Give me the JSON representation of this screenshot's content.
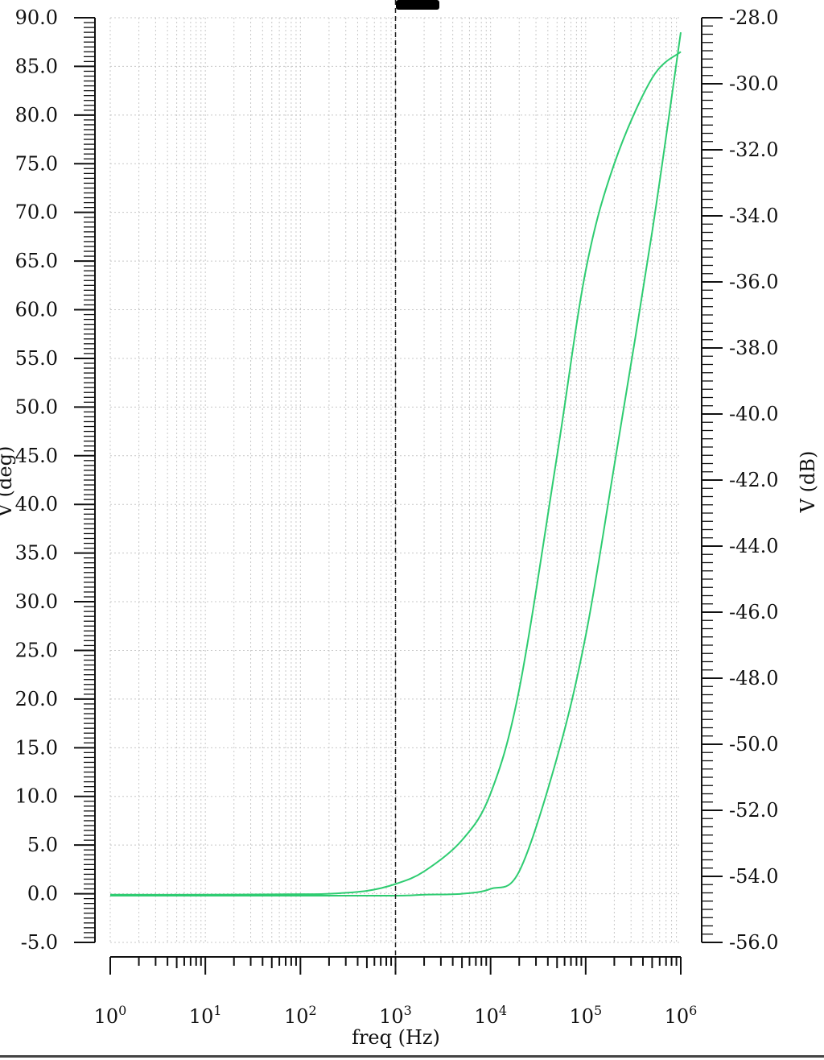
{
  "chart_data": {
    "type": "line",
    "xscale": "log",
    "xlabel": "freq (Hz)",
    "ylabel_left": "V (deg)",
    "ylabel_right": "V (dB)",
    "xlim": [
      1,
      1000000
    ],
    "ylim_left": [
      -5,
      90
    ],
    "ylim_right": [
      -56,
      -28
    ],
    "grid": true,
    "x_ticks": [
      {
        "base": "10",
        "exp": "0",
        "value": 1
      },
      {
        "base": "10",
        "exp": "1",
        "value": 10
      },
      {
        "base": "10",
        "exp": "2",
        "value": 100
      },
      {
        "base": "10",
        "exp": "3",
        "value": 1000
      },
      {
        "base": "10",
        "exp": "4",
        "value": 10000
      },
      {
        "base": "10",
        "exp": "5",
        "value": 100000
      },
      {
        "base": "10",
        "exp": "6",
        "value": 1000000
      }
    ],
    "y_left_ticks": [
      "90.0",
      "85.0",
      "80.0",
      "75.0",
      "70.0",
      "65.0",
      "60.0",
      "55.0",
      "50.0",
      "45.0",
      "40.0",
      "35.0",
      "30.0",
      "25.0",
      "20.0",
      "15.0",
      "10.0",
      "5.0",
      "0.0",
      "-5.0"
    ],
    "y_right_ticks": [
      "-28.0",
      "-30.0",
      "-32.0",
      "-34.0",
      "-36.0",
      "-38.0",
      "-40.0",
      "-42.0",
      "-44.0",
      "-46.0",
      "-48.0",
      "-50.0",
      "-52.0",
      "-54.0",
      "-56.0"
    ],
    "cursor_x": 1000,
    "series": [
      {
        "axis": "left",
        "color": "#2ecc71",
        "x": [
          1,
          10,
          100,
          200,
          500,
          1000,
          2000,
          5000,
          10000,
          20000,
          50000,
          100000,
          200000,
          500000,
          1000000
        ],
        "y": [
          -0.1,
          -0.1,
          -0.05,
          0.0,
          0.3,
          1.0,
          2.3,
          5.5,
          10.3,
          21.0,
          45.0,
          64.0,
          75.0,
          83.8,
          86.5
        ]
      },
      {
        "axis": "left",
        "color": "#2ecc71",
        "x": [
          1,
          10,
          100,
          1000,
          2000,
          5000,
          10000,
          20000,
          50000,
          100000,
          200000,
          500000,
          1000000
        ],
        "y": [
          -0.2,
          -0.2,
          -0.2,
          -0.2,
          -0.1,
          0.0,
          0.5,
          2.3,
          14.0,
          26.5,
          44.0,
          68.0,
          88.5
        ]
      }
    ]
  }
}
